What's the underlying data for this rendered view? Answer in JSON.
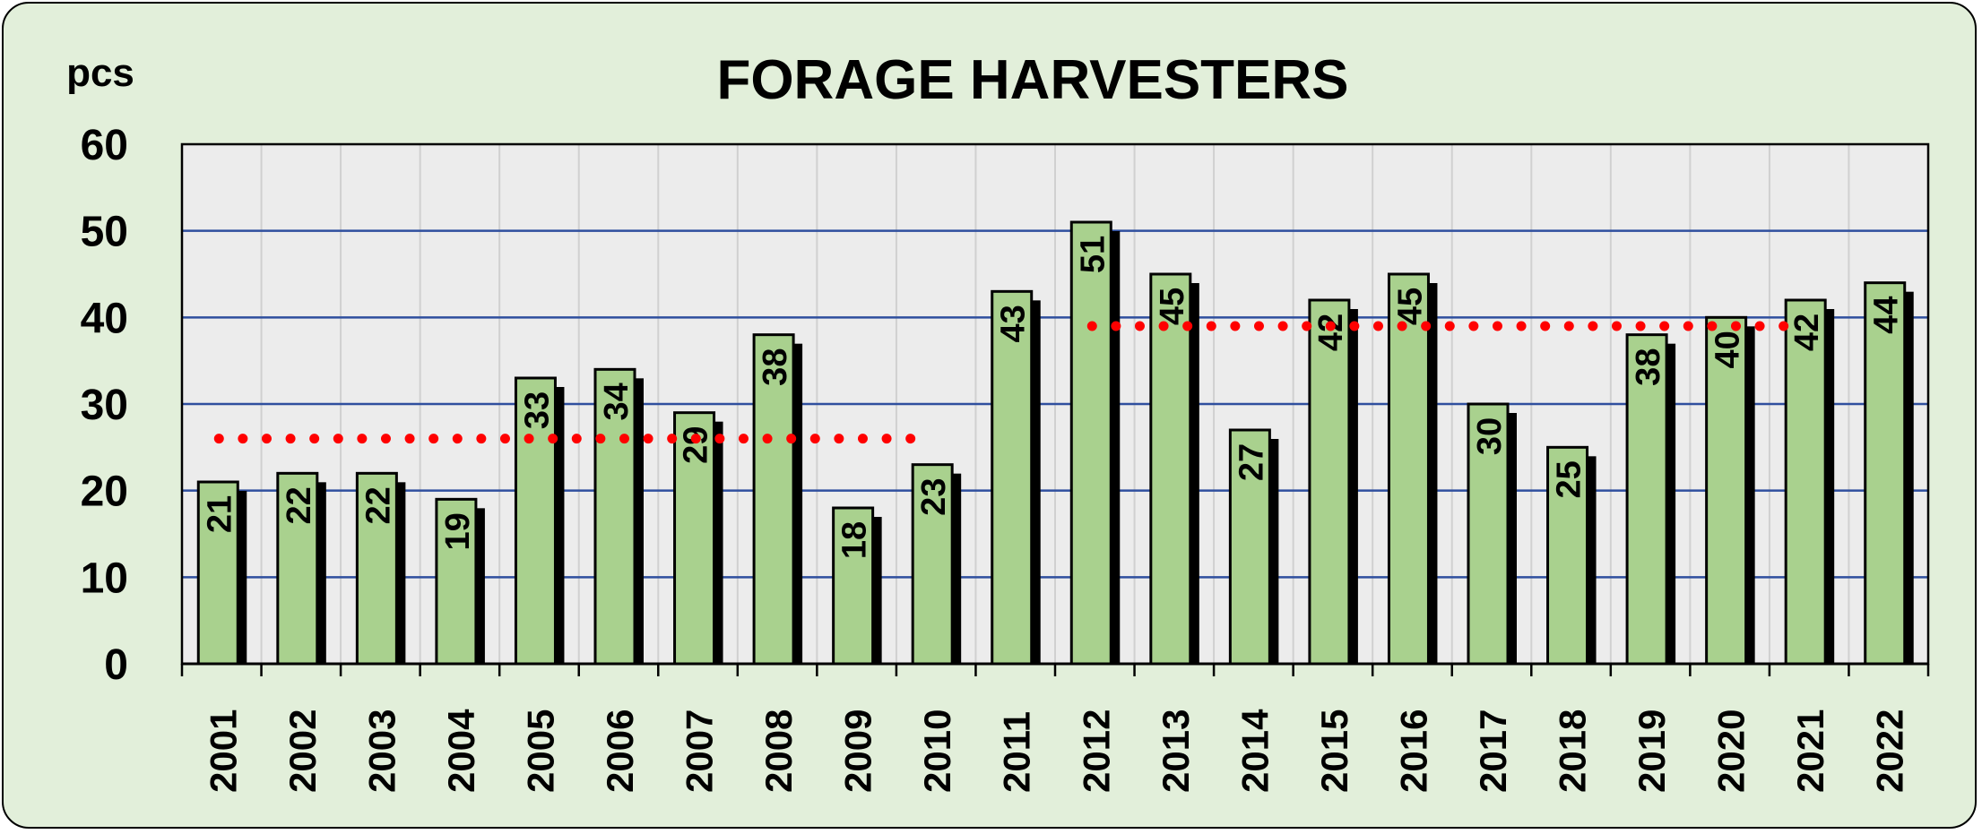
{
  "chart_data": {
    "type": "bar",
    "title": "FORAGE HARVESTERS",
    "ylabel": "pcs",
    "xlabel": "",
    "ylim": [
      0,
      60
    ],
    "yticks": [
      0,
      10,
      20,
      30,
      40,
      50,
      60
    ],
    "grid": true,
    "categories": [
      "2001",
      "2002",
      "2003",
      "2004",
      "2005",
      "2006",
      "2007",
      "2008",
      "2009",
      "2010",
      "2011",
      "2012",
      "2013",
      "2014",
      "2015",
      "2016",
      "2017",
      "2018",
      "2019",
      "2020",
      "2021",
      "2022"
    ],
    "values": [
      21,
      22,
      22,
      19,
      33,
      34,
      29,
      38,
      18,
      23,
      43,
      51,
      45,
      27,
      42,
      45,
      30,
      25,
      38,
      40,
      42,
      44
    ],
    "averages": [
      {
        "from": "2001",
        "to": "2010",
        "value": 26
      },
      {
        "from": "2012",
        "to": "2021",
        "value": 39
      }
    ],
    "colors": {
      "background": "#e2efda",
      "plot_area": "#ececec",
      "bar_fill": "#a9d18e",
      "bar_shadow": "#000000",
      "gridline": "#2f4f9e",
      "vertical_grid": "#d0d0d0",
      "average_line": "#ff0000"
    }
  }
}
